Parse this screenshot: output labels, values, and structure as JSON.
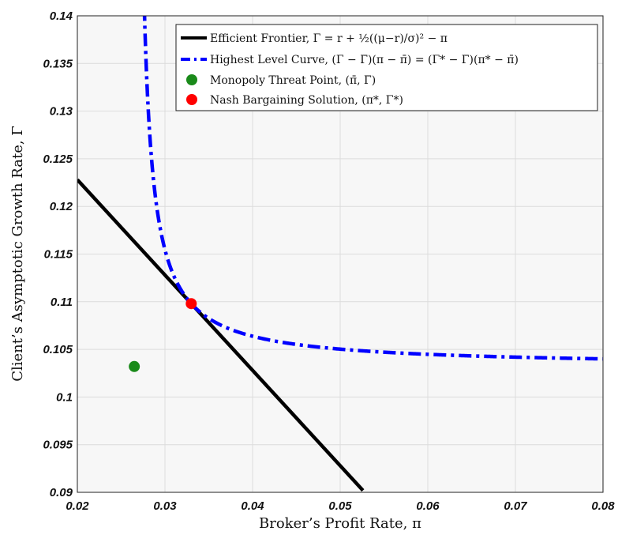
{
  "chart_data": {
    "type": "line",
    "xlabel": "Broker’s Profit Rate, π",
    "ylabel": "Client’s Asymptotic Growth Rate, Γ",
    "xlim": [
      0.02,
      0.08
    ],
    "ylim": [
      0.09,
      0.14
    ],
    "x_ticks": [
      "0.02",
      "0.03",
      "0.04",
      "0.05",
      "0.06",
      "0.07",
      "0.08"
    ],
    "y_ticks": [
      "0.09",
      "0.095",
      "0.1",
      "0.105",
      "0.11",
      "0.115",
      "0.12",
      "0.125",
      "0.13",
      "0.135",
      "0.14"
    ],
    "grid": true,
    "legend_position": "top-right",
    "legend": [
      "Efficient Frontier, Γ = r + ½((μ−r)/σ)² − π",
      "Highest Level Curve, (Γ − Γ̄)(π − π̄) = (Γ* − Γ̄)(π* − π̄)",
      "Monopoly Threat Point, (π̄, Γ̄)",
      "Nash Bargaining Solution, (π*, Γ*)"
    ],
    "series": [
      {
        "kind": "line",
        "color": "#000000",
        "style": "solid",
        "x": [
          0.02,
          0.0526
        ],
        "y": [
          0.1228,
          0.0902
        ]
      },
      {
        "kind": "hyperbola",
        "color": "#0000ff",
        "style": "dash-dot",
        "x_range": [
          0.0275,
          0.08
        ],
        "asymptote_x": 0.0265,
        "asymptote_y": 0.1032,
        "through": [
          0.033,
          0.1098
        ]
      },
      {
        "kind": "point",
        "color": "#1a8a1a",
        "x": 0.0265,
        "y": 0.1032
      },
      {
        "kind": "point",
        "color": "#ff0000",
        "x": 0.033,
        "y": 0.1098
      }
    ]
  }
}
